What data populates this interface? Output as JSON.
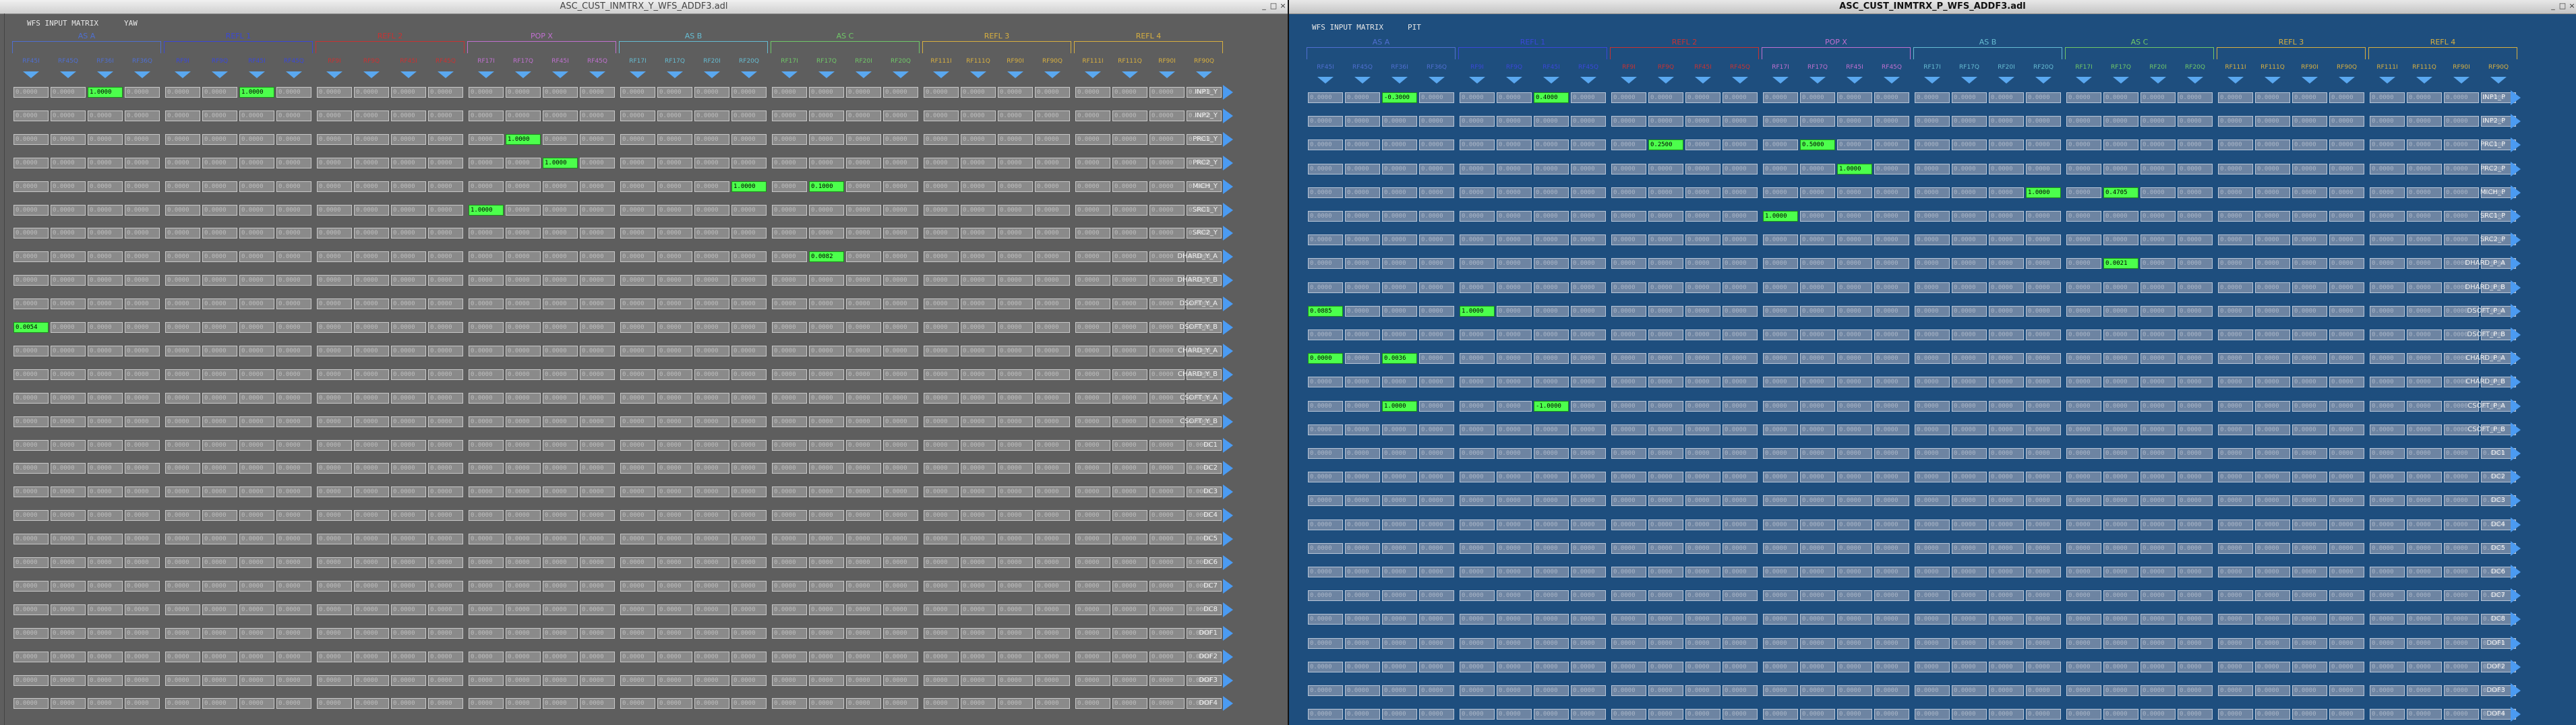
{
  "left": {
    "window_title": "ASC_CUST_INMTRX_Y_WFS_ADDF3.adl",
    "matrix_title": "WFS INPUT MATRIX",
    "dof": "YAW",
    "controls": {
      "minimize": "_",
      "maximize": "□",
      "close": "×"
    },
    "row_labels": [
      "INP1_Y",
      "INP2_Y",
      "PRC1_Y",
      "PRC2_Y",
      "MICH_Y",
      "SRC1_Y",
      "SRC2_Y",
      "DHARD_Y_A",
      "DHARD_Y_B",
      "DSOFT_Y_A",
      "DSOFT_Y_B",
      "CHARD_Y_A",
      "CHARD_Y_B",
      "CSOFT_Y_A",
      "CSOFT_Y_B",
      "DC1",
      "DC2",
      "DC3",
      "DC4",
      "DC5",
      "DC6",
      "DC7",
      "DC8",
      "DOF1",
      "DOF2",
      "DOF3",
      "DOF4"
    ],
    "nonzero": [
      {
        "row": 0,
        "col": 2,
        "value": "1.0000"
      },
      {
        "row": 0,
        "col": 6,
        "value": "1.0000"
      },
      {
        "row": 2,
        "col": 13,
        "value": "1.0000"
      },
      {
        "row": 3,
        "col": 14,
        "value": "1.0000"
      },
      {
        "row": 4,
        "col": 19,
        "value": "1.0000"
      },
      {
        "row": 4,
        "col": 21,
        "value": "0.1000"
      },
      {
        "row": 5,
        "col": 12,
        "value": "1.0000"
      },
      {
        "row": 7,
        "col": 21,
        "value": "0.0082"
      },
      {
        "row": 10,
        "col": 0,
        "value": "0.0054"
      }
    ]
  },
  "right": {
    "window_title": "ASC_CUST_INMTRX_P_WFS_ADDF3.adl",
    "matrix_title": "WFS INPUT MATRIX",
    "dof": "PIT",
    "controls": {
      "minimize": "_",
      "maximize": "□",
      "close": "×"
    },
    "row_labels": [
      "INP1_P",
      "INP2_P",
      "PRC1_P",
      "PRC2_P",
      "MICH_P",
      "SRC1_P",
      "SRC2_P",
      "DHARD_P_A",
      "DHARD_P_B",
      "DSOFT_P_A",
      "DSOFT_P_B",
      "CHARD_P_A",
      "CHARD_P_B",
      "CSOFT_P_A",
      "CSOFT_P_B",
      "DC1",
      "DC2",
      "DC3",
      "DC4",
      "DC5",
      "DC6",
      "DC7",
      "DC8",
      "DOF1",
      "DOF2",
      "DOF3",
      "DOF4"
    ],
    "nonzero": [
      {
        "row": 0,
        "col": 2,
        "value": "-0.3000"
      },
      {
        "row": 0,
        "col": 6,
        "value": "0.4000"
      },
      {
        "row": 2,
        "col": 9,
        "value": "0.2500"
      },
      {
        "row": 2,
        "col": 13,
        "value": "0.5000"
      },
      {
        "row": 3,
        "col": 14,
        "value": "1.0000"
      },
      {
        "row": 4,
        "col": 19,
        "value": "1.0000"
      },
      {
        "row": 4,
        "col": 21,
        "value": "0.4705"
      },
      {
        "row": 5,
        "col": 12,
        "value": "1.0000"
      },
      {
        "row": 7,
        "col": 21,
        "value": "0.0021"
      },
      {
        "row": 9,
        "col": 0,
        "value": "0.0885"
      },
      {
        "row": 9,
        "col": 4,
        "value": "1.0000"
      },
      {
        "row": 11,
        "col": 0,
        "value": "0.0000"
      },
      {
        "row": 11,
        "col": 2,
        "value": "0.0036"
      },
      {
        "row": 13,
        "col": 2,
        "value": "1.0000"
      },
      {
        "row": 13,
        "col": 6,
        "value": "-1.0000"
      }
    ]
  },
  "zero_value": "0.0000",
  "groups": [
    {
      "name": "AS A",
      "color": "#4f6fd0"
    },
    {
      "name": "REFL 1",
      "color": "#3a48d8"
    },
    {
      "name": "REFL 2",
      "color": "#c83232"
    },
    {
      "name": "POP X",
      "color": "#c070d0"
    },
    {
      "name": "AS B",
      "color": "#66bcd2"
    },
    {
      "name": "AS C",
      "color": "#70c868"
    },
    {
      "name": "REFL 3",
      "color": "#d8b040"
    },
    {
      "name": "REFL 4",
      "color": "#d8b040"
    }
  ],
  "columns": [
    [
      "RF45I",
      "RF45Q",
      "RF36I",
      "RF36Q"
    ],
    [
      "RF9I",
      "RF9Q",
      "RF45I",
      "RF45Q"
    ],
    [
      "RF9I",
      "RF9Q",
      "RF45I",
      "RF45Q"
    ],
    [
      "RF17I",
      "RF17Q",
      "RF45I",
      "RF45Q"
    ],
    [
      "RF17I",
      "RF17Q",
      "RF20I",
      "RF20Q"
    ],
    [
      "RF17I",
      "RF17Q",
      "RF20I",
      "RF20Q"
    ],
    [
      "RF111I",
      "RF111Q",
      "RF90I",
      "RF90Q"
    ],
    [
      "RF111I",
      "RF111Q",
      "RF90I",
      "RF90Q"
    ]
  ]
}
